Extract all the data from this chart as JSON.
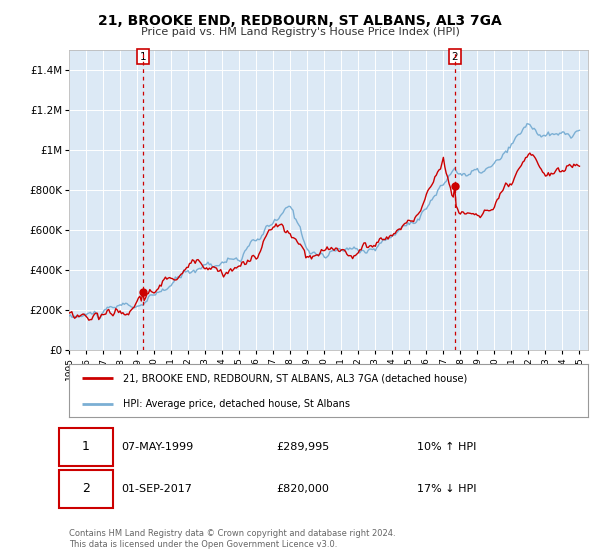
{
  "title": "21, BROOKE END, REDBOURN, ST ALBANS, AL3 7GA",
  "subtitle": "Price paid vs. HM Land Registry's House Price Index (HPI)",
  "legend_line1": "21, BROOKE END, REDBOURN, ST ALBANS, AL3 7GA (detached house)",
  "legend_line2": "HPI: Average price, detached house, St Albans",
  "transaction1_date": "07-MAY-1999",
  "transaction1_price": "£289,995",
  "transaction1_hpi": "10% ↑ HPI",
  "transaction2_date": "01-SEP-2017",
  "transaction2_price": "£820,000",
  "transaction2_hpi": "17% ↓ HPI",
  "footer": "Contains HM Land Registry data © Crown copyright and database right 2024.\nThis data is licensed under the Open Government Licence v3.0.",
  "start_year": 1995,
  "end_year": 2025,
  "transaction1_year": 1999.35,
  "transaction2_year": 2017.67,
  "transaction1_value": 289995,
  "transaction2_value": 820000,
  "hpi_color": "#7bafd4",
  "property_color": "#cc0000",
  "vline_color": "#cc0000",
  "plot_bg_color": "#dce9f5",
  "grid_color": "#ffffff",
  "ylim_max": 1500000,
  "ytick_values": [
    0,
    200000,
    400000,
    600000,
    800000,
    1000000,
    1200000,
    1400000
  ],
  "ytick_labels": [
    "£0",
    "£200K",
    "£400K",
    "£600K",
    "£800K",
    "£1M",
    "£1.2M",
    "£1.4M"
  ]
}
